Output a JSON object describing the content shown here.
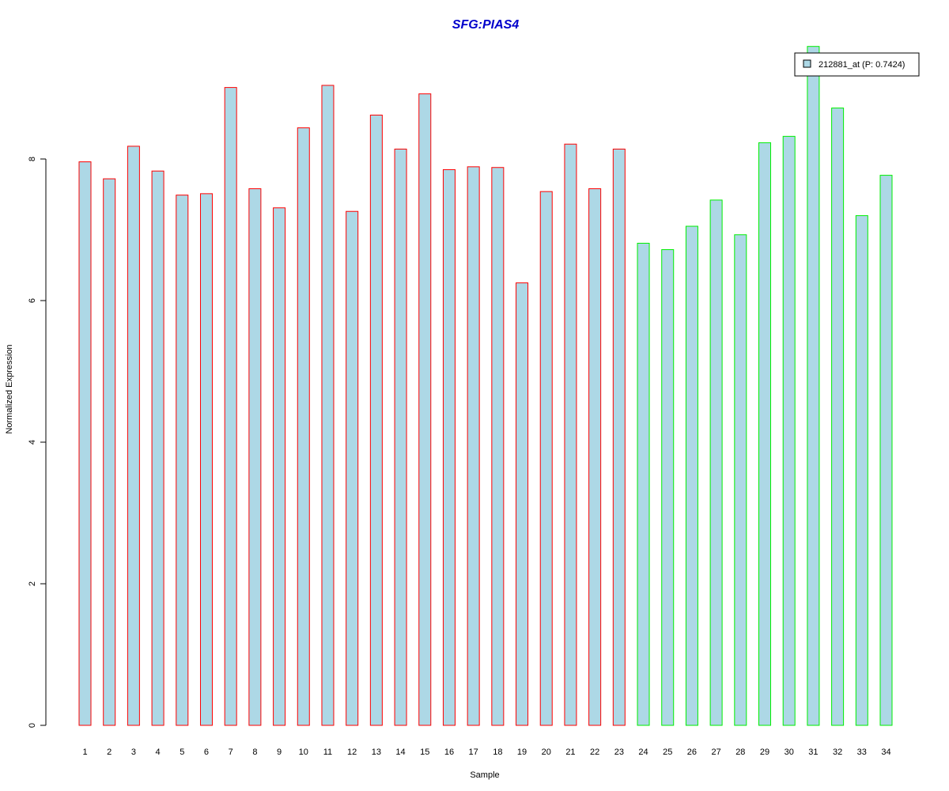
{
  "chart_data": {
    "type": "bar",
    "title": "SFG:PIAS4",
    "xlabel": "Sample",
    "ylabel": "Normalized Expression",
    "categories": [
      "1",
      "2",
      "3",
      "4",
      "5",
      "6",
      "7",
      "8",
      "9",
      "10",
      "11",
      "12",
      "13",
      "14",
      "15",
      "16",
      "17",
      "18",
      "19",
      "20",
      "21",
      "22",
      "23",
      "24",
      "25",
      "26",
      "27",
      "28",
      "29",
      "30",
      "31",
      "32",
      "33",
      "34"
    ],
    "series": [
      {
        "name": "212881_at (P: 0.7424)",
        "values": [
          7.96,
          7.72,
          8.18,
          7.83,
          7.49,
          7.51,
          9.01,
          7.58,
          7.31,
          8.44,
          9.04,
          7.26,
          8.62,
          8.14,
          8.92,
          7.85,
          7.89,
          7.88,
          6.25,
          7.54,
          8.21,
          7.58,
          8.14,
          6.81,
          6.72,
          7.05,
          7.42,
          6.93,
          8.23,
          8.32,
          9.59,
          8.72,
          7.2,
          7.77
        ]
      }
    ],
    "group_border_colors": [
      "#ff0000",
      "#ff0000",
      "#ff0000",
      "#ff0000",
      "#ff0000",
      "#ff0000",
      "#ff0000",
      "#ff0000",
      "#ff0000",
      "#ff0000",
      "#ff0000",
      "#ff0000",
      "#ff0000",
      "#ff0000",
      "#ff0000",
      "#ff0000",
      "#ff0000",
      "#ff0000",
      "#ff0000",
      "#ff0000",
      "#ff0000",
      "#ff0000",
      "#ff0000",
      "#00ee00",
      "#00ee00",
      "#00ee00",
      "#00ee00",
      "#00ee00",
      "#00ee00",
      "#00ee00",
      "#00ee00",
      "#00ee00",
      "#00ee00",
      "#00ee00"
    ],
    "yticks": [
      0,
      2,
      4,
      6,
      8
    ],
    "ylim": [
      0,
      9.6
    ],
    "grid": false,
    "legend_position": "top-right",
    "colors": {
      "bar_fill": "#add8e6",
      "title": "#0000cc",
      "axis": "#000000"
    }
  }
}
